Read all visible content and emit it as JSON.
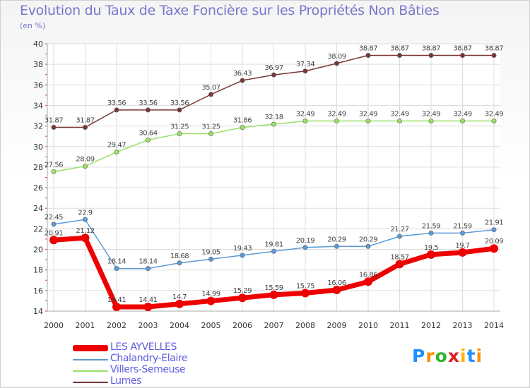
{
  "title": "Evolution du Taux de Taxe Foncière sur les Propriétés Non Bâties",
  "unit_label": "(en %)",
  "logo": {
    "text": "Proxiti",
    "letter_colors": [
      "#1e90ff",
      "#ff8c00",
      "#32b432",
      "#dc1e1e",
      "#ffb400",
      "#1e90ff",
      "#ff8c00"
    ]
  },
  "chart_data": {
    "type": "line",
    "title": "Evolution du Taux de Taxe Foncière sur les Propriétés Non Bâties",
    "ylabel": "(en %)",
    "xlabel": "",
    "ylim": [
      14,
      40
    ],
    "yticks": [
      14,
      16,
      18,
      20,
      22,
      24,
      26,
      28,
      30,
      32,
      34,
      36,
      38,
      40
    ],
    "grid": true,
    "legend_position": "bottom-left",
    "x": [
      2000,
      2001,
      2002,
      2003,
      2004,
      2005,
      2006,
      2007,
      2008,
      2009,
      2010,
      2011,
      2012,
      2013,
      2014
    ],
    "series": [
      {
        "name": "LES AYVELLES",
        "color": "#ee0000",
        "values": [
          20.91,
          21.12,
          14.41,
          14.41,
          14.7,
          14.99,
          15.29,
          15.59,
          15.75,
          16.06,
          16.86,
          18.57,
          19.5,
          19.7,
          20.09
        ],
        "labels": [
          "20.91",
          "21.12",
          "14.41",
          "14.41",
          "14.7",
          "14.99",
          "15.29",
          "15.59",
          "15.75",
          "16.06",
          "16.86",
          "18.57",
          "19.5",
          "19.7",
          "20.09"
        ]
      },
      {
        "name": "Chalandry-Elaire",
        "color": "#5b9bd5",
        "values": [
          22.45,
          22.9,
          18.14,
          18.14,
          18.68,
          19.05,
          19.43,
          19.81,
          20.19,
          20.29,
          20.29,
          21.27,
          21.59,
          21.59,
          21.91
        ],
        "labels": [
          "22.45",
          "22.9",
          "18.14",
          "18.14",
          "18.68",
          "19.05",
          "19.43",
          "19.81",
          "20.19",
          "20.29",
          "20.29",
          "21.27",
          "21.59",
          "21.59",
          "21.91"
        ]
      },
      {
        "name": "Villers-Semeuse",
        "color": "#99e066",
        "values": [
          27.56,
          28.09,
          29.47,
          30.64,
          31.25,
          31.25,
          31.86,
          32.18,
          32.49,
          32.49,
          32.49,
          32.49,
          32.49,
          32.49,
          32.49
        ],
        "labels": [
          "27.56",
          "28.09",
          "29.47",
          "30.64",
          "31.25",
          "31.25",
          "31.86",
          "32.18",
          "32.49",
          "32.49",
          "32.49",
          "32.49",
          "32.49",
          "32.49",
          "32.49"
        ]
      },
      {
        "name": "Lumes",
        "color": "#7a3535",
        "values": [
          31.87,
          31.87,
          33.56,
          33.56,
          33.56,
          35.07,
          36.43,
          36.97,
          37.34,
          38.09,
          38.87,
          38.87,
          38.87,
          38.87,
          38.87
        ],
        "labels": [
          "31.87",
          "31.87",
          "33.56",
          "33.56",
          "33.56",
          "35.07",
          "36.43",
          "36.97",
          "37.34",
          "38.09",
          "38.87",
          "38.87",
          "38.87",
          "38.87",
          "38.87"
        ]
      }
    ]
  }
}
